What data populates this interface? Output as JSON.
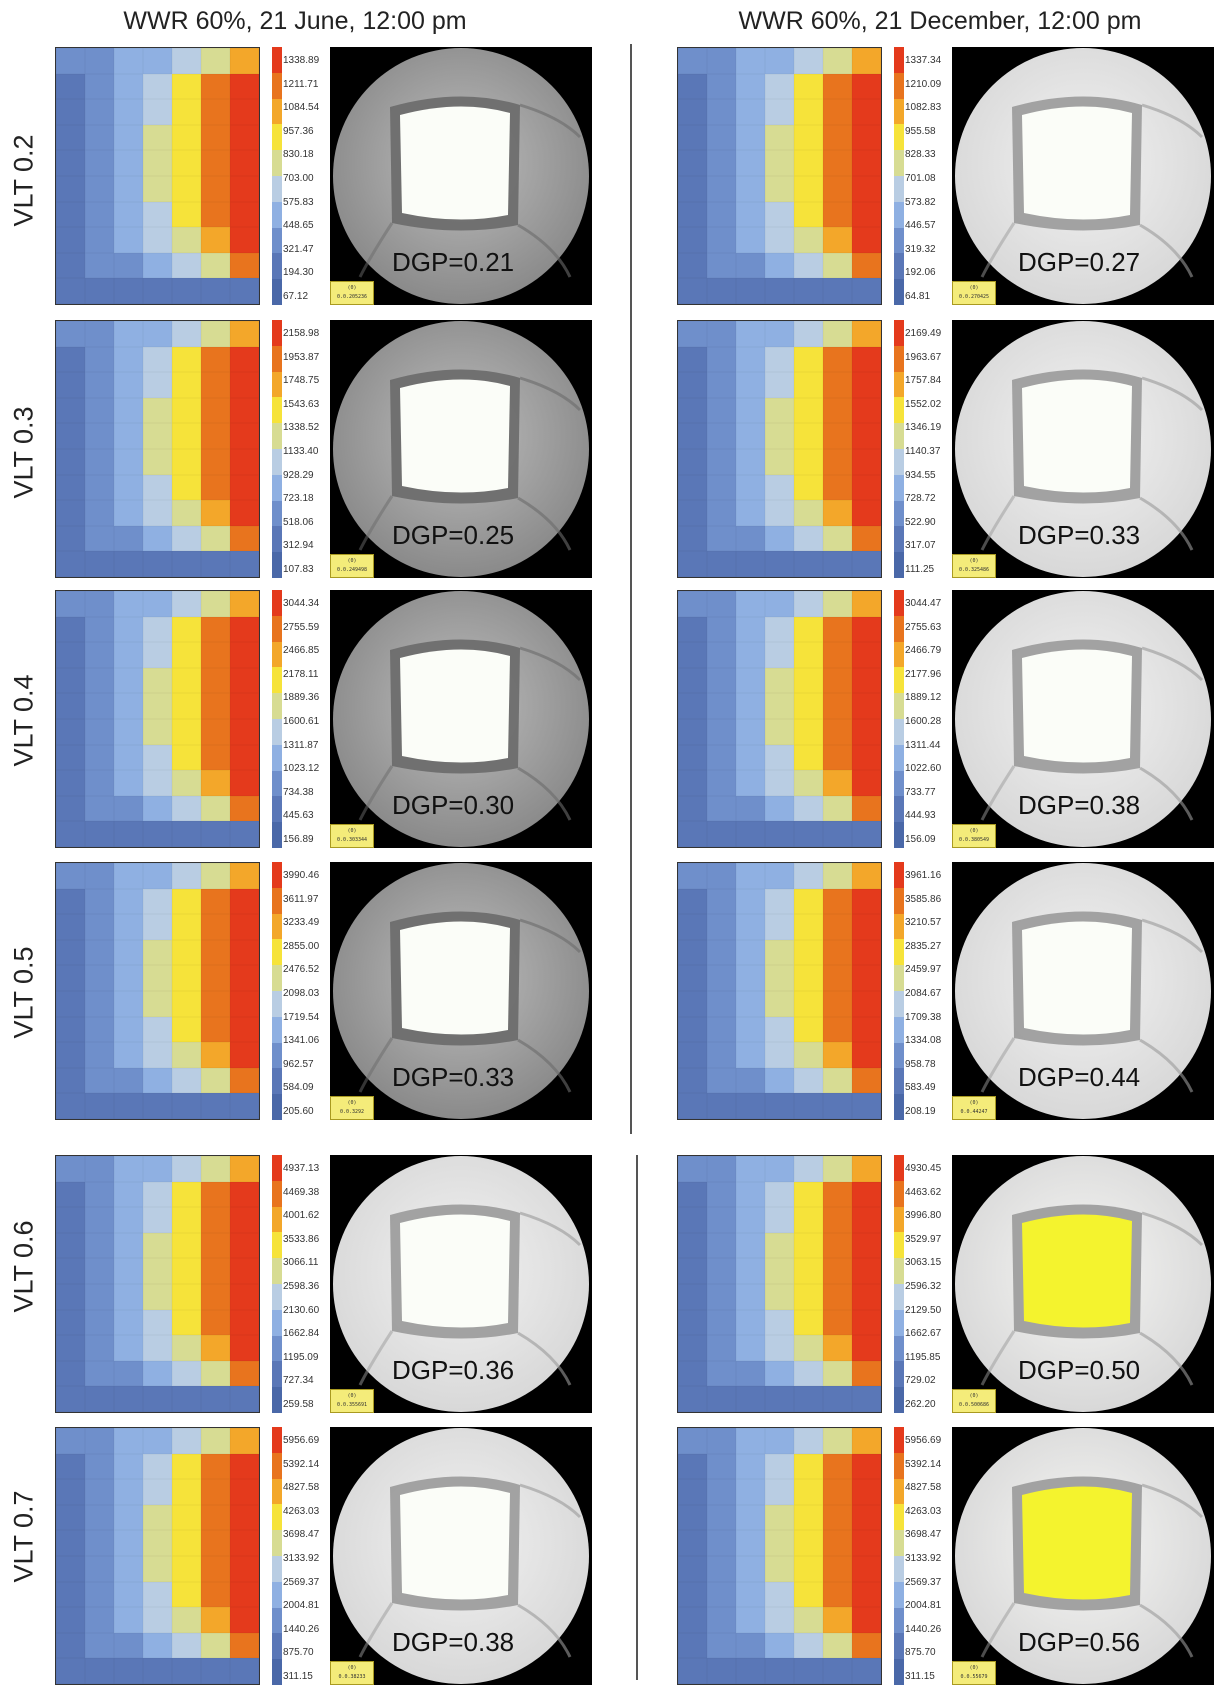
{
  "columns": [
    {
      "title": "WWR 60%, 21 June, 12:00 pm"
    },
    {
      "title": "WWR 60%, 21 December, 12:00 pm"
    }
  ],
  "rows": [
    {
      "label": "VLT 0.2"
    },
    {
      "label": "VLT 0.3"
    },
    {
      "label": "VLT 0.4"
    },
    {
      "label": "VLT 0.5"
    },
    {
      "label": "VLT 0.6"
    },
    {
      "label": "VLT 0.7"
    }
  ],
  "colors": {
    "heatmap_palette": [
      "#5a77b7",
      "#6f8fcb",
      "#8fb0e2",
      "#b9cde3",
      "#d7dc93",
      "#f6e33a",
      "#f3a72a",
      "#e8741e",
      "#e43a1c"
    ],
    "window_yellow": "#f4f32e",
    "fisheye_frame": "#707070",
    "legend_tag": "#f4ec7a"
  },
  "panels": [
    {
      "dgp": "DGP=0.21",
      "tag": "(0)",
      "tag_value": "0.0.205236",
      "ticks": [
        "1338.89",
        "1211.71",
        "1084.54",
        "957.36",
        "830.18",
        "703.00",
        "575.83",
        "448.65",
        "321.47",
        "194.30",
        "67.12"
      ],
      "tone": "dark"
    },
    {
      "dgp": "DGP=0.27",
      "tag": "(0)",
      "tag_value": "0.0.270425",
      "ticks": [
        "1337.34",
        "1210.09",
        "1082.83",
        "955.58",
        "828.33",
        "701.08",
        "573.82",
        "446.57",
        "319.32",
        "192.06",
        "64.81"
      ],
      "tone": "light"
    },
    {
      "dgp": "DGP=0.25",
      "tag": "(0)",
      "tag_value": "0.0.249498",
      "ticks": [
        "2158.98",
        "1953.87",
        "1748.75",
        "1543.63",
        "1338.52",
        "1133.40",
        "928.29",
        "723.18",
        "518.06",
        "312.94",
        "107.83"
      ],
      "tone": "dark"
    },
    {
      "dgp": "DGP=0.33",
      "tag": "(0)",
      "tag_value": "0.0.325486",
      "ticks": [
        "2169.49",
        "1963.67",
        "1757.84",
        "1552.02",
        "1346.19",
        "1140.37",
        "934.55",
        "728.72",
        "522.90",
        "317.07",
        "111.25"
      ],
      "tone": "light"
    },
    {
      "dgp": "DGP=0.30",
      "tag": "(0)",
      "tag_value": "0.0.303344",
      "ticks": [
        "3044.34",
        "2755.59",
        "2466.85",
        "2178.11",
        "1889.36",
        "1600.61",
        "1311.87",
        "1023.12",
        "734.38",
        "445.63",
        "156.89"
      ],
      "tone": "dark"
    },
    {
      "dgp": "DGP=0.38",
      "tag": "(0)",
      "tag_value": "0.0.380549",
      "ticks": [
        "3044.47",
        "2755.63",
        "2466.79",
        "2177.96",
        "1889.12",
        "1600.28",
        "1311.44",
        "1022.60",
        "733.77",
        "444.93",
        "156.09"
      ],
      "tone": "light"
    },
    {
      "dgp": "DGP=0.33",
      "tag": "(0)",
      "tag_value": "0.0.3292",
      "ticks": [
        "3990.46",
        "3611.97",
        "3233.49",
        "2855.00",
        "2476.52",
        "2098.03",
        "1719.54",
        "1341.06",
        "962.57",
        "584.09",
        "205.60"
      ],
      "tone": "dark"
    },
    {
      "dgp": "DGP=0.44",
      "tag": "(0)",
      "tag_value": "0.0.44247",
      "ticks": [
        "3961.16",
        "3585.86",
        "3210.57",
        "2835.27",
        "2459.97",
        "2084.67",
        "1709.38",
        "1334.08",
        "958.78",
        "583.49",
        "208.19"
      ],
      "tone": "light"
    },
    {
      "dgp": "DGP=0.36",
      "tag": "(0)",
      "tag_value": "0.0.355691",
      "ticks": [
        "4937.13",
        "4469.38",
        "4001.62",
        "3533.86",
        "3066.11",
        "2598.36",
        "2130.60",
        "1662.84",
        "1195.09",
        "727.34",
        "259.58"
      ],
      "tone": "light"
    },
    {
      "dgp": "DGP=0.50",
      "tag": "(0)",
      "tag_value": "0.0.500686",
      "ticks": [
        "4930.45",
        "4463.62",
        "3996.80",
        "3529.97",
        "3063.15",
        "2596.32",
        "2129.50",
        "1662.67",
        "1195.85",
        "729.02",
        "262.20"
      ],
      "tone": "yellow"
    },
    {
      "dgp": "DGP=0.38",
      "tag": "(0)",
      "tag_value": "0.0.38233",
      "ticks": [
        "5956.69",
        "5392.14",
        "4827.58",
        "4263.03",
        "3698.47",
        "3133.92",
        "2569.37",
        "2004.81",
        "1440.26",
        "875.70",
        "311.15"
      ],
      "tone": "light"
    },
    {
      "dgp": "DGP=0.56",
      "tag": "(0)",
      "tag_value": "0.0.55679",
      "ticks": [
        "5956.69",
        "5392.14",
        "4827.58",
        "4263.03",
        "3698.47",
        "3133.92",
        "2569.37",
        "2004.81",
        "1440.26",
        "875.70",
        "311.15"
      ],
      "tone": "yellow"
    }
  ]
}
